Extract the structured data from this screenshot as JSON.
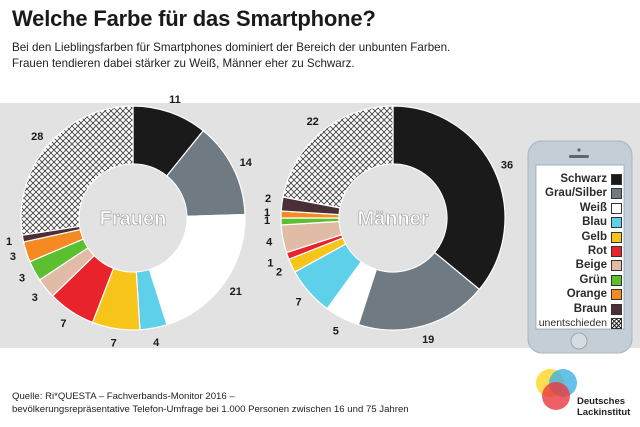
{
  "title": "Welche Farbe für das Smartphone?",
  "subtitle_lines": [
    "Bei den Lieblingsfarben für Smartphones dominiert der Bereich der unbunten Farben.",
    "Frauen tendieren dabei stärker zu Weiß, Männer eher zu Schwarz."
  ],
  "source_lines": [
    "Quelle: Ri*QUESTA – Fachverbands-Monitor 2016 –",
    "bevölkerungsrepräsentative Telefon-Umfrage bei 1.000 Personen zwischen 16 und 75 Jahren"
  ],
  "logo": {
    "line1": "Deutsches",
    "line2": "Lackinstitut"
  },
  "colors": {
    "Schwarz": "#1a1a1a",
    "Grau/Silber": "#6f7a82",
    "Weiß": "#ffffff",
    "Blau": "#5fd0ea",
    "Gelb": "#f7c41a",
    "Rot": "#e8232b",
    "Beige": "#e0bba6",
    "Grün": "#5bbf30",
    "Orange": "#f58a22",
    "Braun": "#4a2f36",
    "unentschieden": "#ffffff"
  },
  "chart_data": [
    {
      "type": "pie",
      "variant": "donut",
      "name": "Frauen",
      "center_label": "Frauen",
      "categories": [
        "Schwarz",
        "Grau/Silber",
        "Weiß",
        "Blau",
        "Gelb",
        "Rot",
        "Beige",
        "Grün",
        "Orange",
        "Braun",
        "unentschieden"
      ],
      "values": [
        11,
        14,
        21,
        4,
        7,
        7,
        3,
        3,
        3,
        1,
        28
      ],
      "labels": [
        "11",
        "14",
        "21",
        "4",
        "7",
        "7",
        "3",
        "3",
        "3",
        "1",
        "28"
      ]
    },
    {
      "type": "pie",
      "variant": "donut",
      "name": "Männer",
      "center_label": "Männer",
      "categories": [
        "Schwarz",
        "Grau/Silber",
        "Weiß",
        "Blau",
        "Gelb",
        "Rot",
        "Beige",
        "Grün",
        "Orange",
        "Braun",
        "unentschieden"
      ],
      "values": [
        36,
        19,
        5,
        7,
        2,
        1,
        4,
        1,
        1,
        2,
        22
      ],
      "labels": [
        "36",
        "19",
        "5",
        "7",
        "2",
        "1",
        "4",
        "1",
        "1",
        "2",
        "22"
      ]
    }
  ],
  "legend": {
    "items": [
      {
        "label": "Schwarz",
        "key": "Schwarz"
      },
      {
        "label": "Grau/Silber",
        "key": "Grau/Silber"
      },
      {
        "label": "Weiß",
        "key": "Weiß"
      },
      {
        "label": "Blau",
        "key": "Blau"
      },
      {
        "label": "Gelb",
        "key": "Gelb"
      },
      {
        "label": "Rot",
        "key": "Rot"
      },
      {
        "label": "Beige",
        "key": "Beige"
      },
      {
        "label": "Grün",
        "key": "Grün"
      },
      {
        "label": "Orange",
        "key": "Orange"
      },
      {
        "label": "Braun",
        "key": "Braun"
      },
      {
        "label": "unentschieden",
        "key": "unentschieden"
      }
    ]
  }
}
